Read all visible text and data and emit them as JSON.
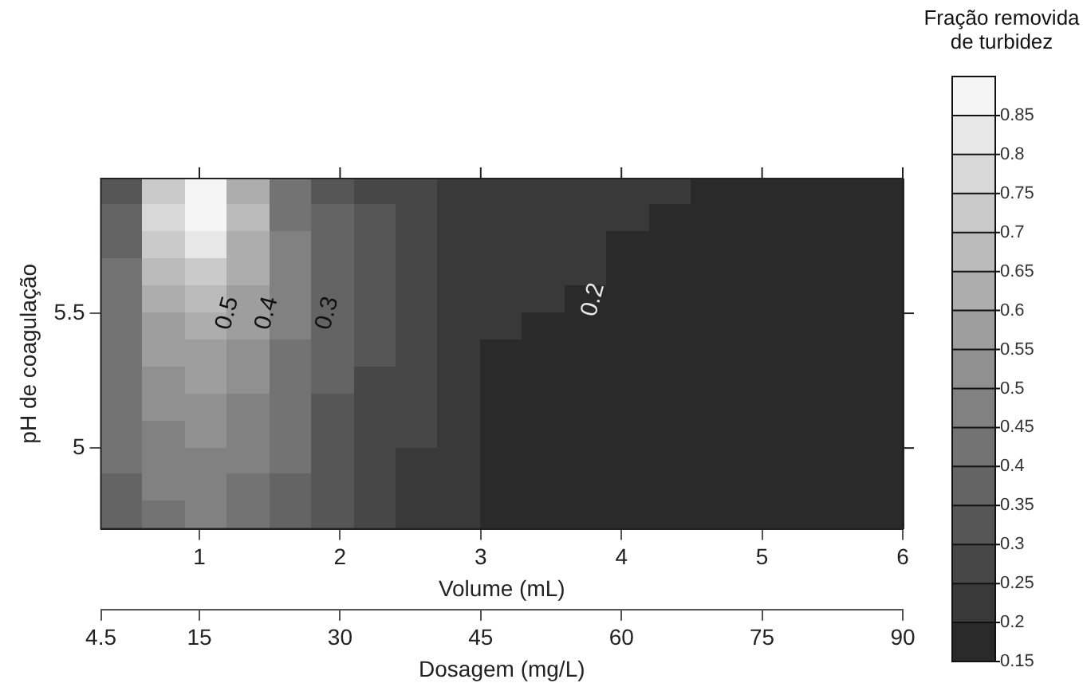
{
  "chart_data": {
    "type": "scatter",
    "marker": "square",
    "xlabel": "Volume (mL)",
    "ylabel": "pH de coagulação",
    "x2label": "Dosagem (mg/L)",
    "clabel": "Fração removida de turbidez",
    "xlim": [
      0.3,
      6
    ],
    "xticks": [
      1,
      2,
      3,
      4,
      5,
      6
    ],
    "ylim": [
      4.7,
      6
    ],
    "yticks": [
      5,
      5.5
    ],
    "x2lim": [
      4.5,
      90
    ],
    "x2ticks": [
      4.5,
      15,
      30,
      45,
      60,
      75,
      90
    ],
    "clim": [
      0.15,
      0.9
    ],
    "cticks": [
      0.15,
      0.2,
      0.25,
      0.3,
      0.35,
      0.4,
      0.45,
      0.5,
      0.55,
      0.6,
      0.65,
      0.7,
      0.75,
      0.8,
      0.85
    ],
    "annotations": [
      "0.5",
      "0.4",
      "0.3",
      "0.2"
    ],
    "series": [
      {
        "x": [
          0.45,
          0.75,
          1.05,
          1.35,
          1.65,
          1.95,
          2.25,
          2.55,
          2.85,
          3.15,
          3.45,
          3.75,
          4.05,
          4.35,
          4.65,
          4.95,
          5.25,
          5.55,
          5.85
        ],
        "values": [
          5.95,
          5.95,
          5.95,
          5.95,
          5.95,
          5.95,
          5.95,
          5.95,
          5.95,
          5.95,
          5.95,
          5.95,
          5.95,
          5.95,
          5.95,
          5.95,
          5.95,
          5.95,
          5.95
        ],
        "cvalues": [
          0.32,
          0.7,
          0.86,
          0.62,
          0.42,
          0.34,
          0.29,
          0.26,
          0.24,
          0.23,
          0.22,
          0.21,
          0.21,
          0.2,
          0.19,
          0.18,
          0.18,
          0.18,
          0.17
        ],
        "colors": [
          "#565656",
          "#cacaca",
          "#f5f5f5",
          "#adadad",
          "#737373",
          "#565656",
          "#474747",
          "#474747",
          "#393939",
          "#393939",
          "#393939",
          "#393939",
          "#393939",
          "#393939",
          "#2a2a2a",
          "#2a2a2a",
          "#2a2a2a",
          "#2a2a2a",
          "#2a2a2a"
        ]
      },
      {
        "x": [
          0.45,
          0.75,
          1.05,
          1.35,
          1.65,
          1.95,
          2.25,
          2.55,
          2.85,
          3.15,
          3.45,
          3.75,
          4.05,
          4.35,
          4.65,
          4.95,
          5.25,
          5.55,
          5.85
        ],
        "values": [
          5.85,
          5.85,
          5.85,
          5.85,
          5.85,
          5.85,
          5.85,
          5.85,
          5.85,
          5.85,
          5.85,
          5.85,
          5.85,
          5.85,
          5.85,
          5.85,
          5.85,
          5.85,
          5.85
        ],
        "cvalues": [
          0.35,
          0.75,
          0.88,
          0.66,
          0.44,
          0.35,
          0.3,
          0.26,
          0.24,
          0.23,
          0.22,
          0.21,
          0.2,
          0.19,
          0.18,
          0.18,
          0.18,
          0.17,
          0.17
        ],
        "colors": [
          "#646464",
          "#d8d8d8",
          "#f5f5f5",
          "#bbbbbb",
          "#737373",
          "#646464",
          "#565656",
          "#474747",
          "#393939",
          "#393939",
          "#393939",
          "#393939",
          "#393939",
          "#2a2a2a",
          "#2a2a2a",
          "#2a2a2a",
          "#2a2a2a",
          "#2a2a2a",
          "#2a2a2a"
        ]
      },
      {
        "x": [
          0.45,
          0.75,
          1.05,
          1.35,
          1.65,
          1.95,
          2.25,
          2.55,
          2.85,
          3.15,
          3.45,
          3.75,
          4.05,
          4.35,
          4.65,
          4.95,
          5.25,
          5.55,
          5.85
        ],
        "values": [
          5.75,
          5.75,
          5.75,
          5.75,
          5.75,
          5.75,
          5.75,
          5.75,
          5.75,
          5.75,
          5.75,
          5.75,
          5.75,
          5.75,
          5.75,
          5.75,
          5.75,
          5.75,
          5.75
        ],
        "cvalues": [
          0.38,
          0.7,
          0.8,
          0.64,
          0.45,
          0.35,
          0.3,
          0.26,
          0.24,
          0.23,
          0.22,
          0.21,
          0.19,
          0.18,
          0.18,
          0.18,
          0.17,
          0.17,
          0.17
        ],
        "colors": [
          "#646464",
          "#cacaca",
          "#e7e7e7",
          "#adadad",
          "#818181",
          "#646464",
          "#565656",
          "#474747",
          "#393939",
          "#393939",
          "#393939",
          "#393939",
          "#2a2a2a",
          "#2a2a2a",
          "#2a2a2a",
          "#2a2a2a",
          "#2a2a2a",
          "#2a2a2a",
          "#2a2a2a"
        ]
      },
      {
        "x": [
          0.45,
          0.75,
          1.05,
          1.35,
          1.65,
          1.95,
          2.25,
          2.55,
          2.85,
          3.15,
          3.45,
          3.75,
          4.05,
          4.35,
          4.65,
          4.95,
          5.25,
          5.55,
          5.85
        ],
        "values": [
          5.65,
          5.65,
          5.65,
          5.65,
          5.65,
          5.65,
          5.65,
          5.65,
          5.65,
          5.65,
          5.65,
          5.65,
          5.65,
          5.65,
          5.65,
          5.65,
          5.65,
          5.65,
          5.65
        ],
        "cvalues": [
          0.4,
          0.65,
          0.72,
          0.6,
          0.46,
          0.36,
          0.3,
          0.26,
          0.24,
          0.23,
          0.21,
          0.2,
          0.18,
          0.18,
          0.18,
          0.17,
          0.17,
          0.17,
          0.17
        ],
        "colors": [
          "#737373",
          "#bbbbbb",
          "#cacaca",
          "#adadad",
          "#818181",
          "#646464",
          "#565656",
          "#474747",
          "#393939",
          "#393939",
          "#393939",
          "#393939",
          "#2a2a2a",
          "#2a2a2a",
          "#2a2a2a",
          "#2a2a2a",
          "#2a2a2a",
          "#2a2a2a",
          "#2a2a2a"
        ]
      },
      {
        "x": [
          0.45,
          0.75,
          1.05,
          1.35,
          1.65,
          1.95,
          2.25,
          2.55,
          2.85,
          3.15,
          3.45,
          3.75,
          4.05,
          4.35,
          4.65,
          4.95,
          5.25,
          5.55,
          5.85
        ],
        "values": [
          5.55,
          5.55,
          5.55,
          5.55,
          5.55,
          5.55,
          5.55,
          5.55,
          5.55,
          5.55,
          5.55,
          5.55,
          5.55,
          5.55,
          5.55,
          5.55,
          5.55,
          5.55,
          5.55
        ],
        "cvalues": [
          0.41,
          0.62,
          0.66,
          0.57,
          0.46,
          0.36,
          0.3,
          0.26,
          0.24,
          0.22,
          0.2,
          0.19,
          0.18,
          0.18,
          0.17,
          0.17,
          0.17,
          0.17,
          0.17
        ],
        "colors": [
          "#737373",
          "#adadad",
          "#bbbbbb",
          "#9e9e9e",
          "#818181",
          "#646464",
          "#565656",
          "#474747",
          "#393939",
          "#393939",
          "#393939",
          "#2a2a2a",
          "#2a2a2a",
          "#2a2a2a",
          "#2a2a2a",
          "#2a2a2a",
          "#2a2a2a",
          "#2a2a2a",
          "#2a2a2a"
        ]
      },
      {
        "x": [
          0.45,
          0.75,
          1.05,
          1.35,
          1.65,
          1.95,
          2.25,
          2.55,
          2.85,
          3.15,
          3.45,
          3.75,
          4.05,
          4.35,
          4.65,
          4.95,
          5.25,
          5.55,
          5.85
        ],
        "values": [
          5.45,
          5.45,
          5.45,
          5.45,
          5.45,
          5.45,
          5.45,
          5.45,
          5.45,
          5.45,
          5.45,
          5.45,
          5.45,
          5.45,
          5.45,
          5.45,
          5.45,
          5.45,
          5.45
        ],
        "cvalues": [
          0.42,
          0.58,
          0.62,
          0.55,
          0.45,
          0.36,
          0.3,
          0.26,
          0.24,
          0.21,
          0.19,
          0.18,
          0.18,
          0.17,
          0.17,
          0.17,
          0.17,
          0.17,
          0.17
        ],
        "colors": [
          "#737373",
          "#9e9e9e",
          "#adadad",
          "#9e9e9e",
          "#818181",
          "#646464",
          "#565656",
          "#474747",
          "#393939",
          "#393939",
          "#2a2a2a",
          "#2a2a2a",
          "#2a2a2a",
          "#2a2a2a",
          "#2a2a2a",
          "#2a2a2a",
          "#2a2a2a",
          "#2a2a2a",
          "#2a2a2a"
        ]
      },
      {
        "x": [
          0.45,
          0.75,
          1.05,
          1.35,
          1.65,
          1.95,
          2.25,
          2.55,
          2.85,
          3.15,
          3.45,
          3.75,
          4.05,
          4.35,
          4.65,
          4.95,
          5.25,
          5.55,
          5.85
        ],
        "values": [
          5.35,
          5.35,
          5.35,
          5.35,
          5.35,
          5.35,
          5.35,
          5.35,
          5.35,
          5.35,
          5.35,
          5.35,
          5.35,
          5.35,
          5.35,
          5.35,
          5.35,
          5.35,
          5.35
        ],
        "cvalues": [
          0.42,
          0.55,
          0.58,
          0.53,
          0.44,
          0.35,
          0.3,
          0.26,
          0.23,
          0.19,
          0.18,
          0.18,
          0.17,
          0.17,
          0.17,
          0.17,
          0.17,
          0.17,
          0.17
        ],
        "colors": [
          "#737373",
          "#9e9e9e",
          "#9e9e9e",
          "#909090",
          "#737373",
          "#646464",
          "#565656",
          "#474747",
          "#393939",
          "#2a2a2a",
          "#2a2a2a",
          "#2a2a2a",
          "#2a2a2a",
          "#2a2a2a",
          "#2a2a2a",
          "#2a2a2a",
          "#2a2a2a",
          "#2a2a2a",
          "#2a2a2a"
        ]
      },
      {
        "x": [
          0.45,
          0.75,
          1.05,
          1.35,
          1.65,
          1.95,
          2.25,
          2.55,
          2.85,
          3.15,
          3.45,
          3.75,
          4.05,
          4.35,
          4.65,
          4.95,
          5.25,
          5.55,
          5.85
        ],
        "values": [
          5.25,
          5.25,
          5.25,
          5.25,
          5.25,
          5.25,
          5.25,
          5.25,
          5.25,
          5.25,
          5.25,
          5.25,
          5.25,
          5.25,
          5.25,
          5.25,
          5.25,
          5.25,
          5.25
        ],
        "cvalues": [
          0.42,
          0.53,
          0.56,
          0.51,
          0.43,
          0.35,
          0.29,
          0.25,
          0.23,
          0.19,
          0.18,
          0.18,
          0.17,
          0.17,
          0.17,
          0.17,
          0.17,
          0.17,
          0.17
        ],
        "colors": [
          "#737373",
          "#909090",
          "#9e9e9e",
          "#909090",
          "#737373",
          "#646464",
          "#474747",
          "#474747",
          "#393939",
          "#2a2a2a",
          "#2a2a2a",
          "#2a2a2a",
          "#2a2a2a",
          "#2a2a2a",
          "#2a2a2a",
          "#2a2a2a",
          "#2a2a2a",
          "#2a2a2a",
          "#2a2a2a"
        ]
      },
      {
        "x": [
          0.45,
          0.75,
          1.05,
          1.35,
          1.65,
          1.95,
          2.25,
          2.55,
          2.85,
          3.15,
          3.45,
          3.75,
          4.05,
          4.35,
          4.65,
          4.95,
          5.25,
          5.55,
          5.85
        ],
        "values": [
          5.15,
          5.15,
          5.15,
          5.15,
          5.15,
          5.15,
          5.15,
          5.15,
          5.15,
          5.15,
          5.15,
          5.15,
          5.15,
          5.15,
          5.15,
          5.15,
          5.15,
          5.15,
          5.15
        ],
        "cvalues": [
          0.42,
          0.51,
          0.53,
          0.49,
          0.42,
          0.34,
          0.29,
          0.25,
          0.23,
          0.19,
          0.18,
          0.17,
          0.17,
          0.17,
          0.17,
          0.17,
          0.17,
          0.17,
          0.17
        ],
        "colors": [
          "#737373",
          "#909090",
          "#909090",
          "#818181",
          "#737373",
          "#565656",
          "#474747",
          "#474747",
          "#393939",
          "#2a2a2a",
          "#2a2a2a",
          "#2a2a2a",
          "#2a2a2a",
          "#2a2a2a",
          "#2a2a2a",
          "#2a2a2a",
          "#2a2a2a",
          "#2a2a2a",
          "#2a2a2a"
        ]
      },
      {
        "x": [
          0.45,
          0.75,
          1.05,
          1.35,
          1.65,
          1.95,
          2.25,
          2.55,
          2.85,
          3.15,
          3.45,
          3.75,
          4.05,
          4.35,
          4.65,
          4.95,
          5.25,
          5.55,
          5.85
        ],
        "values": [
          5.05,
          5.05,
          5.05,
          5.05,
          5.05,
          5.05,
          5.05,
          5.05,
          5.05,
          5.05,
          5.05,
          5.05,
          5.05,
          5.05,
          5.05,
          5.05,
          5.05,
          5.05,
          5.05
        ],
        "cvalues": [
          0.41,
          0.49,
          0.51,
          0.47,
          0.41,
          0.34,
          0.28,
          0.25,
          0.22,
          0.19,
          0.18,
          0.17,
          0.17,
          0.17,
          0.17,
          0.17,
          0.17,
          0.17,
          0.17
        ],
        "colors": [
          "#737373",
          "#818181",
          "#909090",
          "#818181",
          "#737373",
          "#565656",
          "#474747",
          "#474747",
          "#393939",
          "#2a2a2a",
          "#2a2a2a",
          "#2a2a2a",
          "#2a2a2a",
          "#2a2a2a",
          "#2a2a2a",
          "#2a2a2a",
          "#2a2a2a",
          "#2a2a2a",
          "#2a2a2a"
        ]
      },
      {
        "x": [
          0.45,
          0.75,
          1.05,
          1.35,
          1.65,
          1.95,
          2.25,
          2.55,
          2.85,
          3.15,
          3.45,
          3.75,
          4.05,
          4.35,
          4.65,
          4.95,
          5.25,
          5.55,
          5.85
        ],
        "values": [
          4.95,
          4.95,
          4.95,
          4.95,
          4.95,
          4.95,
          4.95,
          4.95,
          4.95,
          4.95,
          4.95,
          4.95,
          4.95,
          4.95,
          4.95,
          4.95,
          4.95,
          4.95,
          4.95
        ],
        "cvalues": [
          0.4,
          0.47,
          0.49,
          0.46,
          0.4,
          0.33,
          0.28,
          0.24,
          0.22,
          0.19,
          0.18,
          0.17,
          0.17,
          0.17,
          0.17,
          0.17,
          0.17,
          0.17,
          0.17
        ],
        "colors": [
          "#737373",
          "#818181",
          "#818181",
          "#818181",
          "#737373",
          "#565656",
          "#474747",
          "#393939",
          "#393939",
          "#2a2a2a",
          "#2a2a2a",
          "#2a2a2a",
          "#2a2a2a",
          "#2a2a2a",
          "#2a2a2a",
          "#2a2a2a",
          "#2a2a2a",
          "#2a2a2a",
          "#2a2a2a"
        ]
      },
      {
        "x": [
          0.45,
          0.75,
          1.05,
          1.35,
          1.65,
          1.95,
          2.25,
          2.55,
          2.85,
          3.15,
          3.45,
          3.75,
          4.05,
          4.35,
          4.65,
          4.95,
          5.25,
          5.55,
          5.85
        ],
        "values": [
          4.85,
          4.85,
          4.85,
          4.85,
          4.85,
          4.85,
          4.85,
          4.85,
          4.85,
          4.85,
          4.85,
          4.85,
          4.85,
          4.85,
          4.85,
          4.85,
          4.85,
          4.85,
          4.85
        ],
        "cvalues": [
          0.39,
          0.46,
          0.47,
          0.44,
          0.39,
          0.32,
          0.28,
          0.24,
          0.22,
          0.19,
          0.18,
          0.17,
          0.17,
          0.17,
          0.17,
          0.17,
          0.17,
          0.17,
          0.17
        ],
        "colors": [
          "#646464",
          "#818181",
          "#818181",
          "#737373",
          "#646464",
          "#565656",
          "#474747",
          "#393939",
          "#393939",
          "#2a2a2a",
          "#2a2a2a",
          "#2a2a2a",
          "#2a2a2a",
          "#2a2a2a",
          "#2a2a2a",
          "#2a2a2a",
          "#2a2a2a",
          "#2a2a2a",
          "#2a2a2a"
        ]
      },
      {
        "x": [
          0.45,
          0.75,
          1.05,
          1.35,
          1.65,
          1.95,
          2.25,
          2.55,
          2.85,
          3.15,
          3.45,
          3.75,
          4.05,
          4.35,
          4.65,
          4.95,
          5.25,
          5.55,
          5.85
        ],
        "values": [
          4.75,
          4.75,
          4.75,
          4.75,
          4.75,
          4.75,
          4.75,
          4.75,
          4.75,
          4.75,
          4.75,
          4.75,
          4.75,
          4.75,
          4.75,
          4.75,
          4.75,
          4.75,
          4.75
        ],
        "cvalues": [
          0.38,
          0.44,
          0.46,
          0.43,
          0.38,
          0.31,
          0.27,
          0.24,
          0.22,
          0.19,
          0.18,
          0.17,
          0.17,
          0.17,
          0.17,
          0.17,
          0.17,
          0.17,
          0.17
        ],
        "colors": [
          "#646464",
          "#737373",
          "#818181",
          "#737373",
          "#646464",
          "#565656",
          "#474747",
          "#393939",
          "#393939",
          "#2a2a2a",
          "#2a2a2a",
          "#2a2a2a",
          "#2a2a2a",
          "#2a2a2a",
          "#2a2a2a",
          "#2a2a2a",
          "#2a2a2a",
          "#2a2a2a",
          "#2a2a2a"
        ]
      }
    ]
  }
}
